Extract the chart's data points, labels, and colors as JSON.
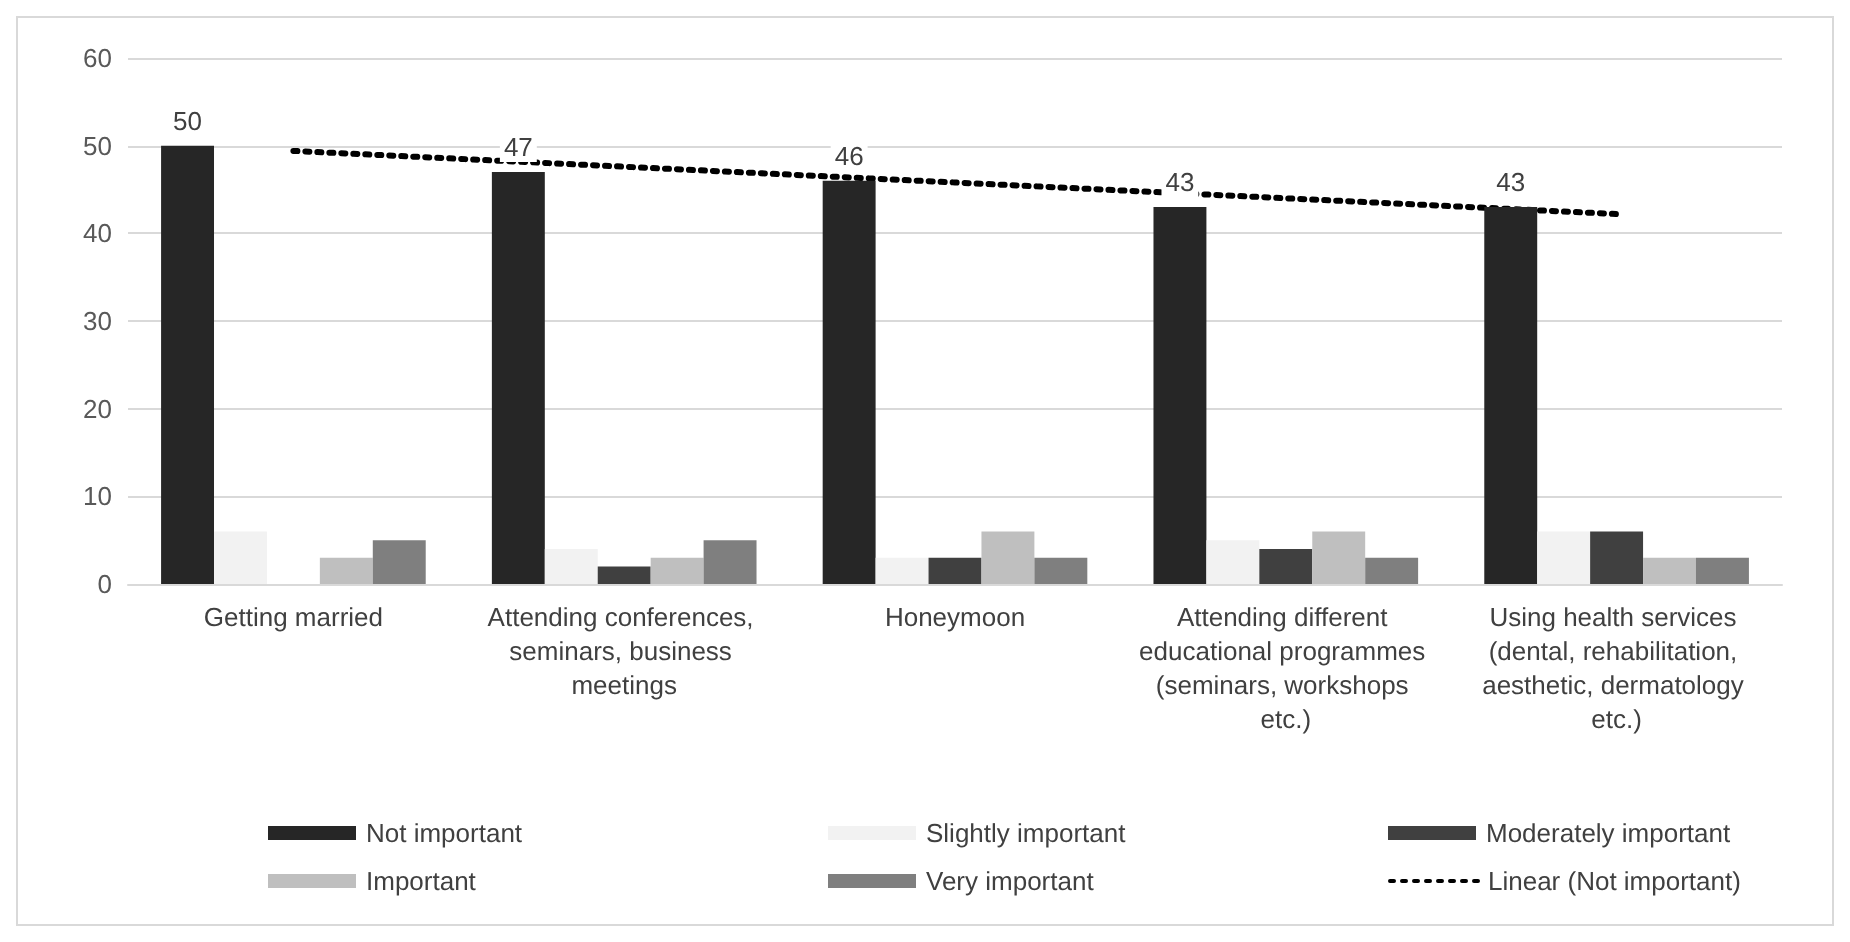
{
  "chart_data": {
    "type": "bar",
    "categories": [
      "Getting married",
      "Attending conferences, seminars, business meetings",
      "Honeymoon",
      "Attending different educational programmes (seminars, workshops etc.)",
      "Using health services (dental, rehabilitation, aesthetic, dermatology etc.)"
    ],
    "series": [
      {
        "name": "Not important",
        "color": "#262626",
        "values": [
          50,
          47,
          46,
          43,
          43
        ],
        "value_labels": [
          "50",
          "47",
          "46",
          "43",
          "43"
        ]
      },
      {
        "name": "Slightly important",
        "color": "#f2f2f2",
        "values": [
          6,
          4,
          3,
          5,
          6
        ]
      },
      {
        "name": "Moderately important",
        "color": "#404040",
        "values": [
          0,
          2,
          3,
          4,
          6
        ]
      },
      {
        "name": "Important",
        "color": "#bfbfbf",
        "values": [
          3,
          3,
          6,
          6,
          3
        ]
      },
      {
        "name": "Very important",
        "color": "#7f7f7f",
        "values": [
          5,
          5,
          3,
          3,
          3
        ]
      },
      {
        "name": "Linear (Not important)",
        "type": "line",
        "color": "#000000",
        "line_style": "dotted",
        "marker": "none",
        "values": [
          49.4,
          47.6,
          45.8,
          44.0,
          42.2
        ]
      }
    ],
    "ylim": [
      0,
      60
    ],
    "yticks": [
      0,
      10,
      20,
      30,
      40,
      50,
      60
    ],
    "grid": "y",
    "legend": "bottom"
  }
}
